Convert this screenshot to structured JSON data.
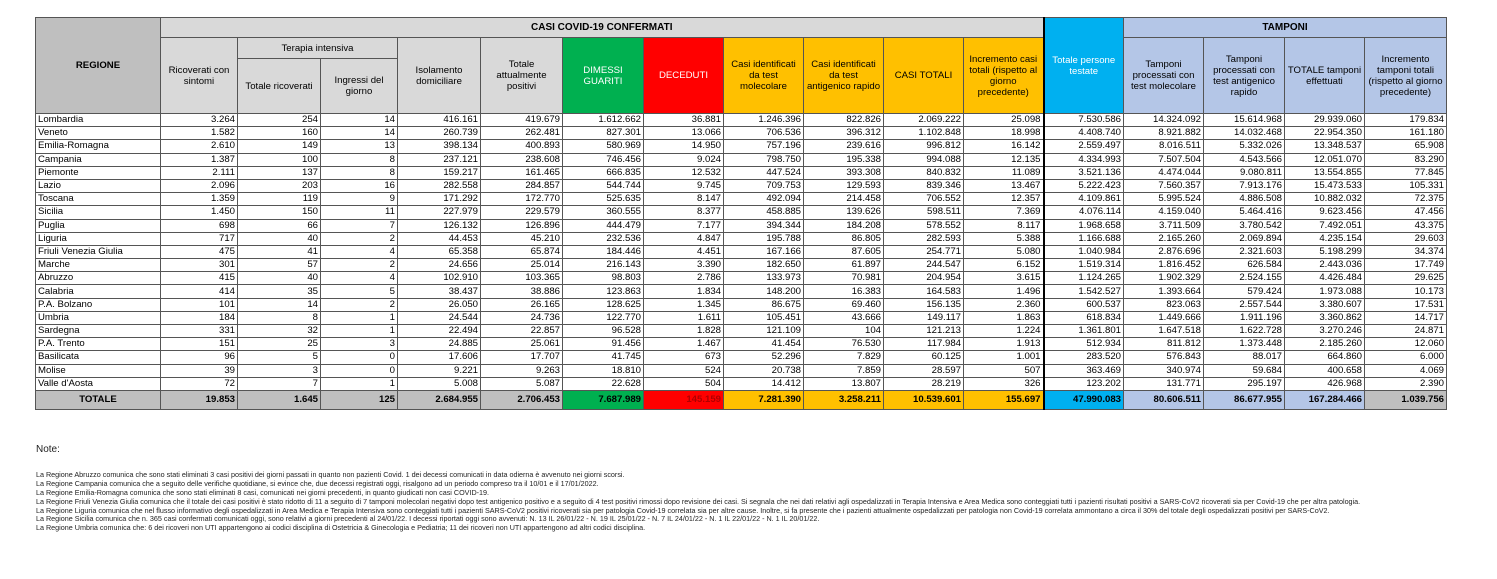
{
  "headers": {
    "region": "REGIONE",
    "casi_group": "CASI COVID-19 CONFERMATI",
    "tamponi_group": "TAMPONI",
    "terapia_group": "Terapia intensiva",
    "cols": [
      "Ricoverati con sintomi",
      "Totale ricoverati",
      "Ingressi del giorno",
      "Isolamento domiciliare",
      "Totale attualmente positivi",
      "DIMESSI GUARITI",
      "DECEDUTI",
      "Casi identificati da test molecolare",
      "Casi identificati da test antigenico rapido",
      "CASI TOTALI",
      "Incremento casi totali (rispetto al giorno precedente)",
      "Totale persone testate",
      "Tamponi processati con test molecolare",
      "Tamponi processati con test antigenico rapido",
      "TOTALE tamponi effettuati",
      "Incremento tamponi totali (rispetto al giorno precedente)"
    ]
  },
  "colors": {
    "dimessi": "#00b050",
    "deceduti": "#ff0000",
    "casi": "#ffc000",
    "persone": "#00b0f0",
    "tamponi": "#b4c6e7"
  },
  "rows": [
    [
      "Lombardia",
      "3.264",
      "254",
      "14",
      "416.161",
      "419.679",
      "1.612.662",
      "36.881",
      "1.246.396",
      "822.826",
      "2.069.222",
      "25.098",
      "7.530.586",
      "14.324.092",
      "15.614.968",
      "29.939.060",
      "179.834"
    ],
    [
      "Veneto",
      "1.582",
      "160",
      "14",
      "260.739",
      "262.481",
      "827.301",
      "13.066",
      "706.536",
      "396.312",
      "1.102.848",
      "18.998",
      "4.408.740",
      "8.921.882",
      "14.032.468",
      "22.954.350",
      "161.180"
    ],
    [
      "Emilia-Romagna",
      "2.610",
      "149",
      "13",
      "398.134",
      "400.893",
      "580.969",
      "14.950",
      "757.196",
      "239.616",
      "996.812",
      "16.142",
      "2.559.497",
      "8.016.511",
      "5.332.026",
      "13.348.537",
      "65.908"
    ],
    [
      "Campania",
      "1.387",
      "100",
      "8",
      "237.121",
      "238.608",
      "746.456",
      "9.024",
      "798.750",
      "195.338",
      "994.088",
      "12.135",
      "4.334.993",
      "7.507.504",
      "4.543.566",
      "12.051.070",
      "83.290"
    ],
    [
      "Piemonte",
      "2.111",
      "137",
      "8",
      "159.217",
      "161.465",
      "666.835",
      "12.532",
      "447.524",
      "393.308",
      "840.832",
      "11.089",
      "3.521.136",
      "4.474.044",
      "9.080.811",
      "13.554.855",
      "77.845"
    ],
    [
      "Lazio",
      "2.096",
      "203",
      "16",
      "282.558",
      "284.857",
      "544.744",
      "9.745",
      "709.753",
      "129.593",
      "839.346",
      "13.467",
      "5.222.423",
      "7.560.357",
      "7.913.176",
      "15.473.533",
      "105.331"
    ],
    [
      "Toscana",
      "1.359",
      "119",
      "9",
      "171.292",
      "172.770",
      "525.635",
      "8.147",
      "492.094",
      "214.458",
      "706.552",
      "12.357",
      "4.109.861",
      "5.995.524",
      "4.886.508",
      "10.882.032",
      "72.375"
    ],
    [
      "Sicilia",
      "1.450",
      "150",
      "11",
      "227.979",
      "229.579",
      "360.555",
      "8.377",
      "458.885",
      "139.626",
      "598.511",
      "7.369",
      "4.076.114",
      "4.159.040",
      "5.464.416",
      "9.623.456",
      "47.456"
    ],
    [
      "Puglia",
      "698",
      "66",
      "7",
      "126.132",
      "126.896",
      "444.479",
      "7.177",
      "394.344",
      "184.208",
      "578.552",
      "8.117",
      "1.968.658",
      "3.711.509",
      "3.780.542",
      "7.492.051",
      "43.375"
    ],
    [
      "Liguria",
      "717",
      "40",
      "2",
      "44.453",
      "45.210",
      "232.536",
      "4.847",
      "195.788",
      "86.805",
      "282.593",
      "5.388",
      "1.166.688",
      "2.165.260",
      "2.069.894",
      "4.235.154",
      "29.603"
    ],
    [
      "Friuli Venezia Giulia",
      "475",
      "41",
      "4",
      "65.358",
      "65.874",
      "184.446",
      "4.451",
      "167.166",
      "87.605",
      "254.771",
      "5.080",
      "1.040.984",
      "2.876.696",
      "2.321.603",
      "5.198.299",
      "34.374"
    ],
    [
      "Marche",
      "301",
      "57",
      "2",
      "24.656",
      "25.014",
      "216.143",
      "3.390",
      "182.650",
      "61.897",
      "244.547",
      "6.152",
      "1.519.314",
      "1.816.452",
      "626.584",
      "2.443.036",
      "17.749"
    ],
    [
      "Abruzzo",
      "415",
      "40",
      "4",
      "102.910",
      "103.365",
      "98.803",
      "2.786",
      "133.973",
      "70.981",
      "204.954",
      "3.615",
      "1.124.265",
      "1.902.329",
      "2.524.155",
      "4.426.484",
      "29.625"
    ],
    [
      "Calabria",
      "414",
      "35",
      "5",
      "38.437",
      "38.886",
      "123.863",
      "1.834",
      "148.200",
      "16.383",
      "164.583",
      "1.496",
      "1.542.527",
      "1.393.664",
      "579.424",
      "1.973.088",
      "10.173"
    ],
    [
      "P.A. Bolzano",
      "101",
      "14",
      "2",
      "26.050",
      "26.165",
      "128.625",
      "1.345",
      "86.675",
      "69.460",
      "156.135",
      "2.360",
      "600.537",
      "823.063",
      "2.557.544",
      "3.380.607",
      "17.531"
    ],
    [
      "Umbria",
      "184",
      "8",
      "1",
      "24.544",
      "24.736",
      "122.770",
      "1.611",
      "105.451",
      "43.666",
      "149.117",
      "1.863",
      "618.834",
      "1.449.666",
      "1.911.196",
      "3.360.862",
      "14.717"
    ],
    [
      "Sardegna",
      "331",
      "32",
      "1",
      "22.494",
      "22.857",
      "96.528",
      "1.828",
      "121.109",
      "104",
      "121.213",
      "1.224",
      "1.361.801",
      "1.647.518",
      "1.622.728",
      "3.270.246",
      "24.871"
    ],
    [
      "P.A. Trento",
      "151",
      "25",
      "3",
      "24.885",
      "25.061",
      "91.456",
      "1.467",
      "41.454",
      "76.530",
      "117.984",
      "1.913",
      "512.934",
      "811.812",
      "1.373.448",
      "2.185.260",
      "12.060"
    ],
    [
      "Basilicata",
      "96",
      "5",
      "0",
      "17.606",
      "17.707",
      "41.745",
      "673",
      "52.296",
      "7.829",
      "60.125",
      "1.001",
      "283.520",
      "576.843",
      "88.017",
      "664.860",
      "6.000"
    ],
    [
      "Molise",
      "39",
      "3",
      "0",
      "9.221",
      "9.263",
      "18.810",
      "524",
      "20.738",
      "7.859",
      "28.597",
      "507",
      "363.469",
      "340.974",
      "59.684",
      "400.658",
      "4.069"
    ],
    [
      "Valle d'Aosta",
      "72",
      "7",
      "1",
      "5.008",
      "5.087",
      "22.628",
      "504",
      "14.412",
      "13.807",
      "28.219",
      "326",
      "123.202",
      "131.771",
      "295.197",
      "426.968",
      "2.390"
    ]
  ],
  "total": [
    "TOTALE",
    "19.853",
    "1.645",
    "125",
    "2.684.955",
    "2.706.453",
    "7.687.989",
    "145.159",
    "7.281.390",
    "3.258.211",
    "10.539.601",
    "155.697",
    "47.990.083",
    "80.606.511",
    "86.677.955",
    "167.284.466",
    "1.039.756"
  ],
  "notes": {
    "title": "Note:",
    "items": [
      "La Regione Abruzzo  comunica che sono stati eliminati 3 casi positivi dei giorni passati in quanto non pazienti Covid. 1 dei decessi comunicati in data odierna è avvenuto nei giorni scorsi.",
      "La Regione Campania comunica che a seguito delle verifiche quotidiane, si evince che, due decessi registrati oggi, risalgono ad un periodo compreso tra il 10/01 e il 17/01/2022.",
      "La Regione Emilia-Romagna  comunica che sono stati eliminati 8 casi, comunicati nei giorni precedenti, in quanto giudicati non casi COVID-19.",
      "La Regione Friuli Venezia Giulia comunica che il totale dei casi positivi è stato ridotto di 11 a seguito di 7 tamponi molecolari negativi dopo test antigenico positivo e a seguito di 4 test positivi rimossi dopo revisione dei casi. Si segnala che nei dati relativi agli ospedalizzati in Terapia Intensiva e Area Medica sono conteggiati tutti i pazienti risultati positivi a SARS-CoV2 ricoverati sia per Covid-19 che per altra patologia.",
      "La Regione Liguria comunica che nel flusso informativo degli ospedalizzati in Area Medica e Terapia Intensiva sono conteggiati tutti i pazienti SARS-CoV2 positivi ricoverati sia per patologia Covid-19 correlata sia per altre cause. Inoltre, si fa presente che i pazienti attualmente ospedalizzati per patologia non Covid-19 correlata ammontano a circa il 30% del totale degli ospedalizzati positivi per SARS-CoV2.",
      "La Regione Sicilia comunica che n. 365 casi confermati comunicati oggi, sono relativi a giorni precedenti al 24/01/22. I decessi riportati oggi sono avvenuti:  N. 13 IL 26/01/22 - N. 19 IL 25/01/22 - N. 7 IL 24/01/22 - N. 1 IL 22/01/22 - N. 1 IL 20/01/22.",
      "La Regione Umbria comunica che: 6 dei ricoveri non UTI appartengono ai codici disciplina di Ostetricia & Ginecologia e Pediatria; 11 dei ricoveri non UTI appartengono ad altri codici disciplina."
    ]
  }
}
